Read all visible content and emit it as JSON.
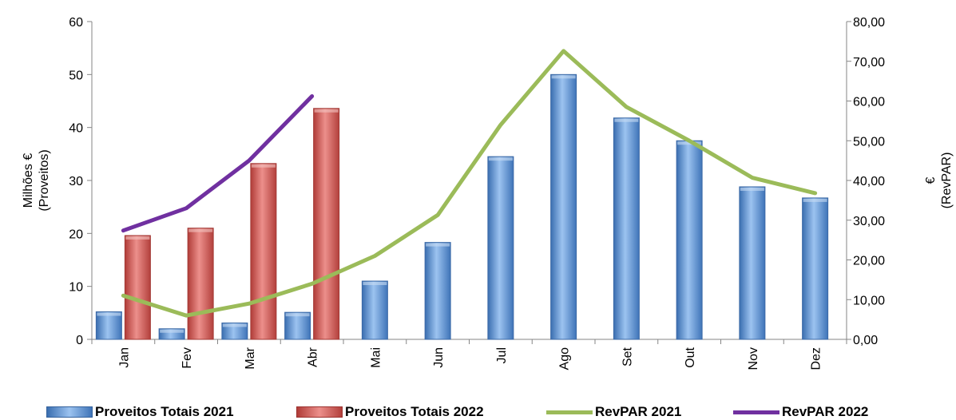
{
  "chart_data": {
    "type": "bar",
    "categories": [
      "Jan",
      "Fev",
      "Mar",
      "Abr",
      "Mai",
      "Jun",
      "Jul",
      "Ago",
      "Set",
      "Out",
      "Nov",
      "Dez"
    ],
    "series": [
      {
        "name": "Proveitos Totais 2021",
        "type": "bar",
        "axis": "left",
        "color": "#4F81BD",
        "values": [
          5.2,
          2.0,
          3.1,
          5.1,
          11.0,
          18.3,
          34.5,
          50.0,
          41.8,
          37.5,
          28.8,
          26.7
        ]
      },
      {
        "name": "Proveitos Totais 2022",
        "type": "bar",
        "axis": "left",
        "color": "#C0504D",
        "values": [
          19.6,
          21.0,
          33.2,
          43.6,
          null,
          null,
          null,
          null,
          null,
          null,
          null,
          null
        ]
      },
      {
        "name": "RevPAR 2021",
        "type": "line",
        "axis": "right",
        "color": "#9BBB59",
        "values": [
          11.0,
          6.0,
          9.0,
          14.0,
          21.0,
          31.3,
          54.0,
          72.6,
          58.5,
          50.0,
          40.7,
          36.8
        ]
      },
      {
        "name": "RevPAR 2022",
        "type": "line",
        "axis": "right",
        "color": "#7030A0",
        "values": [
          27.4,
          33.0,
          45.0,
          61.2,
          null,
          null,
          null,
          null,
          null,
          null,
          null,
          null
        ]
      }
    ],
    "left_axis": {
      "label_lines": [
        "Milhões €",
        "(Proveitos)"
      ],
      "ylim": [
        0,
        60
      ],
      "ticks": [
        "0",
        "10",
        "20",
        "30",
        "40",
        "50",
        "60"
      ]
    },
    "right_axis": {
      "label_lines": [
        "€",
        "(RevPAR)"
      ],
      "ylim": [
        0,
        80
      ],
      "ticks": [
        "0,00",
        "10,00",
        "20,00",
        "30,00",
        "40,00",
        "50,00",
        "60,00",
        "70,00",
        "80,00"
      ]
    },
    "grid": false,
    "legend_position": "bottom"
  }
}
